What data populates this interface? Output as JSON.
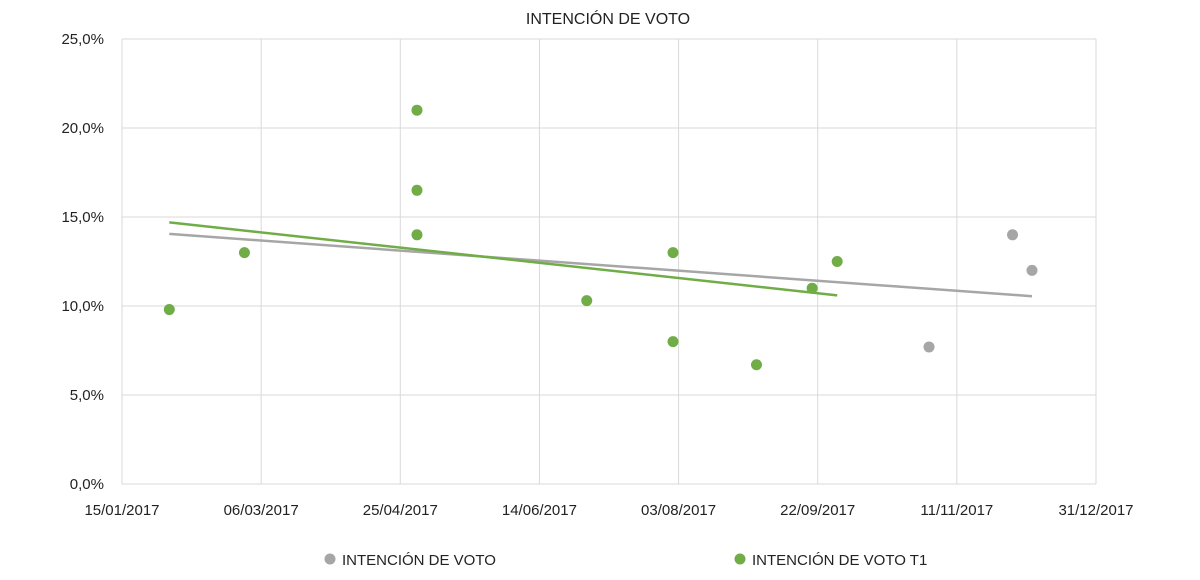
{
  "chart_data": {
    "type": "scatter",
    "title": "INTENCIÓN DE VOTO",
    "x_axis": {
      "type": "date",
      "range": [
        "2017-01-15",
        "2017-12-31"
      ],
      "tick_labels": [
        "15/01/2017",
        "06/03/2017",
        "25/04/2017",
        "14/06/2017",
        "03/08/2017",
        "22/09/2017",
        "11/11/2017",
        "31/12/2017"
      ]
    },
    "y_axis": {
      "range": [
        0,
        25
      ],
      "tick_labels": [
        "0,0%",
        "5,0%",
        "10,0%",
        "15,0%",
        "20,0%",
        "25,0%"
      ]
    },
    "grid": true,
    "legend": "bottom",
    "series": [
      {
        "name": "INTENCIÓN DE VOTO",
        "color": "#a6a6a6",
        "points": [
          {
            "x": "2017-11-01",
            "y": 7.7
          },
          {
            "x": "2017-12-01",
            "y": 14.0
          },
          {
            "x": "2017-12-08",
            "y": 12.0
          }
        ],
        "trendline": {
          "from": {
            "x": "2017-02-01",
            "y": 14.05
          },
          "to": {
            "x": "2017-12-08",
            "y": 10.55
          }
        }
      },
      {
        "name": "INTENCIÓN DE VOTO T1",
        "color": "#70ad47",
        "points": [
          {
            "x": "2017-02-01",
            "y": 9.8
          },
          {
            "x": "2017-02-28",
            "y": 13.0
          },
          {
            "x": "2017-05-01",
            "y": 21.0
          },
          {
            "x": "2017-05-01",
            "y": 16.5
          },
          {
            "x": "2017-05-01",
            "y": 14.0
          },
          {
            "x": "2017-07-01",
            "y": 10.3
          },
          {
            "x": "2017-08-01",
            "y": 13.0
          },
          {
            "x": "2017-08-01",
            "y": 8.0
          },
          {
            "x": "2017-08-31",
            "y": 6.7
          },
          {
            "x": "2017-09-20",
            "y": 11.0
          },
          {
            "x": "2017-09-29",
            "y": 12.5
          }
        ],
        "trendline": {
          "from": {
            "x": "2017-02-01",
            "y": 14.7
          },
          "to": {
            "x": "2017-09-29",
            "y": 10.6
          }
        }
      }
    ]
  }
}
